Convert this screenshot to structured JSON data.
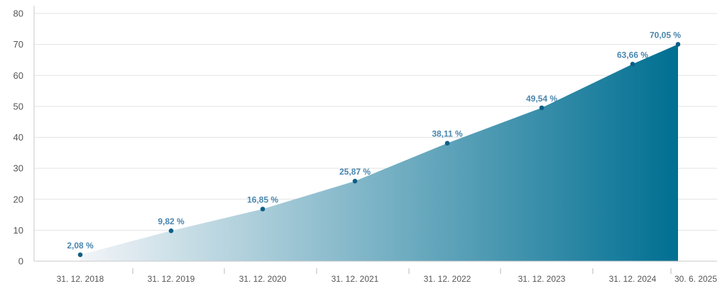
{
  "chart_data": {
    "type": "area",
    "title": "",
    "xlabel": "",
    "ylabel": "",
    "x": [
      "31. 12. 2018",
      "31. 12. 2019",
      "31. 12. 2020",
      "31. 12. 2021",
      "31. 12. 2022",
      "31. 12. 2023",
      "31. 12. 2024",
      "30. 6. 2025"
    ],
    "values": [
      2.08,
      9.82,
      16.85,
      25.87,
      38.11,
      49.54,
      63.66,
      70.05
    ],
    "data_labels": [
      "2,08 %",
      "9,82 %",
      "16,85 %",
      "25,87 %",
      "38,11 %",
      "49,54 %",
      "63,66 %",
      "70,05 %"
    ],
    "ylim": [
      0,
      80
    ],
    "yticks": [
      0,
      10,
      20,
      30,
      40,
      50,
      60,
      70,
      80
    ],
    "grid": true,
    "legend": "none",
    "colors": {
      "gradient_start": "#f3f5f8",
      "gradient_end": "#006f92",
      "point": "#0f5f86",
      "data_label": "#4a86ad"
    }
  }
}
